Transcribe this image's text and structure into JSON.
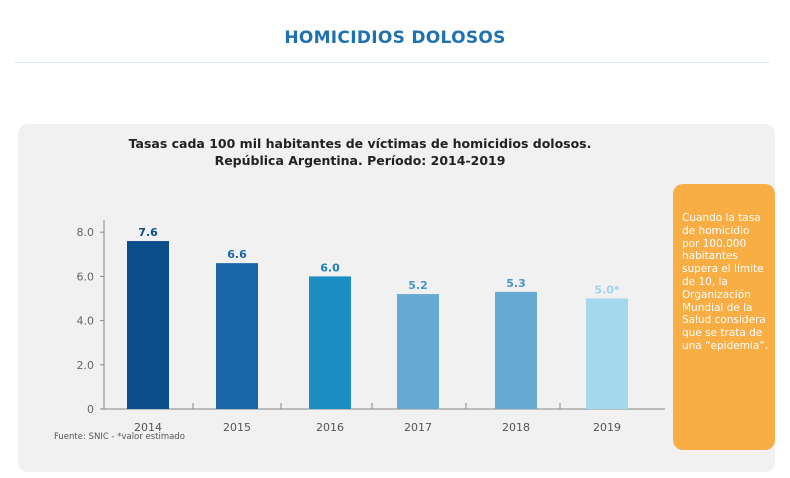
{
  "header": {
    "title": "HOMICIDIOS DOLOSOS"
  },
  "note": "Cuando la tasa de homicidio por 100.000 habitantes supera el límite de 10, la Organización Mundial de la Salud considera que se trata de una “epidemia”.",
  "source": "Fuente: SNIC - *valor estimado",
  "chart_data": {
    "type": "bar",
    "title": "Tasas cada 100 mil habitantes de víctimas de homicidios dolosos.",
    "subtitle": "República Argentina. Período: 2014-2019",
    "categories": [
      "2014",
      "2015",
      "2016",
      "2017",
      "2018",
      "2019"
    ],
    "values": [
      7.6,
      6.6,
      6.0,
      5.2,
      5.3,
      5.0
    ],
    "data_labels": [
      "7.6",
      "6.6",
      "6.0",
      "5.2",
      "5.3",
      "5.0*"
    ],
    "colors": [
      "#0a4f8c",
      "#1a66a7",
      "#1b8fc4",
      "#66aad3",
      "#66aad3",
      "#a3d8ee"
    ],
    "label_colors": [
      "#0a4f8c",
      "#1a66a7",
      "#1a7fb8",
      "#4a95c5",
      "#4a95c5",
      "#9fd3ea"
    ],
    "yticks": [
      "0",
      "2.0",
      "4.0",
      "6.0",
      "8.0"
    ],
    "ytick_values": [
      0,
      2,
      4,
      6,
      8
    ],
    "ylim": [
      0,
      8.5
    ],
    "xlabel": "",
    "ylabel": ""
  }
}
